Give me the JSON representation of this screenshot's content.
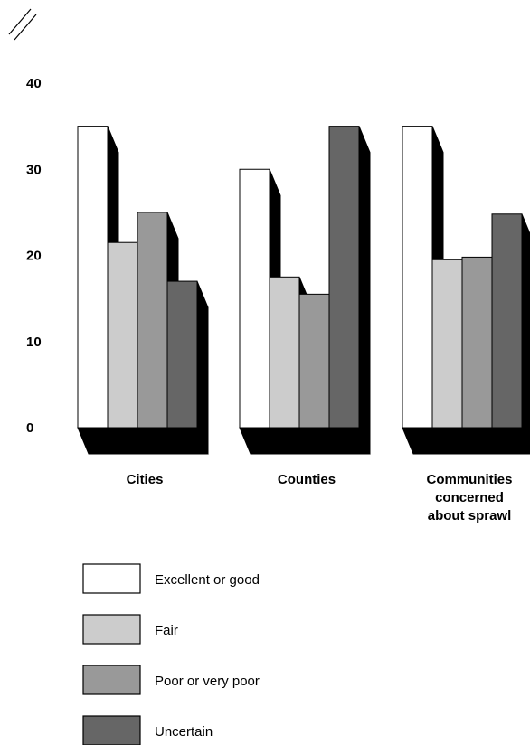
{
  "chart_data": {
    "type": "bar",
    "categories": [
      "Cities",
      "Counties",
      "Communities concerned about sprawl"
    ],
    "category_label_lines": [
      [
        "Cities"
      ],
      [
        "Counties"
      ],
      [
        "Communities",
        "concerned",
        "about sprawl"
      ]
    ],
    "series": [
      {
        "name": "Excellent or good",
        "color": "#ffffff",
        "values": [
          35,
          30,
          35
        ]
      },
      {
        "name": "Fair",
        "color": "#cccccc",
        "values": [
          21.5,
          17.5,
          19.5
        ]
      },
      {
        "name": "Poor or very poor",
        "color": "#999999",
        "values": [
          25,
          15.5,
          19.8
        ]
      },
      {
        "name": "Uncertain",
        "color": "#666666",
        "values": [
          17,
          35,
          24.8
        ]
      }
    ],
    "y_ticks": [
      "0",
      "10",
      "20",
      "30",
      "40"
    ],
    "ylim": [
      0,
      40
    ],
    "legend_position": "bottom-left",
    "title": "",
    "xlabel": "",
    "ylabel": ""
  }
}
